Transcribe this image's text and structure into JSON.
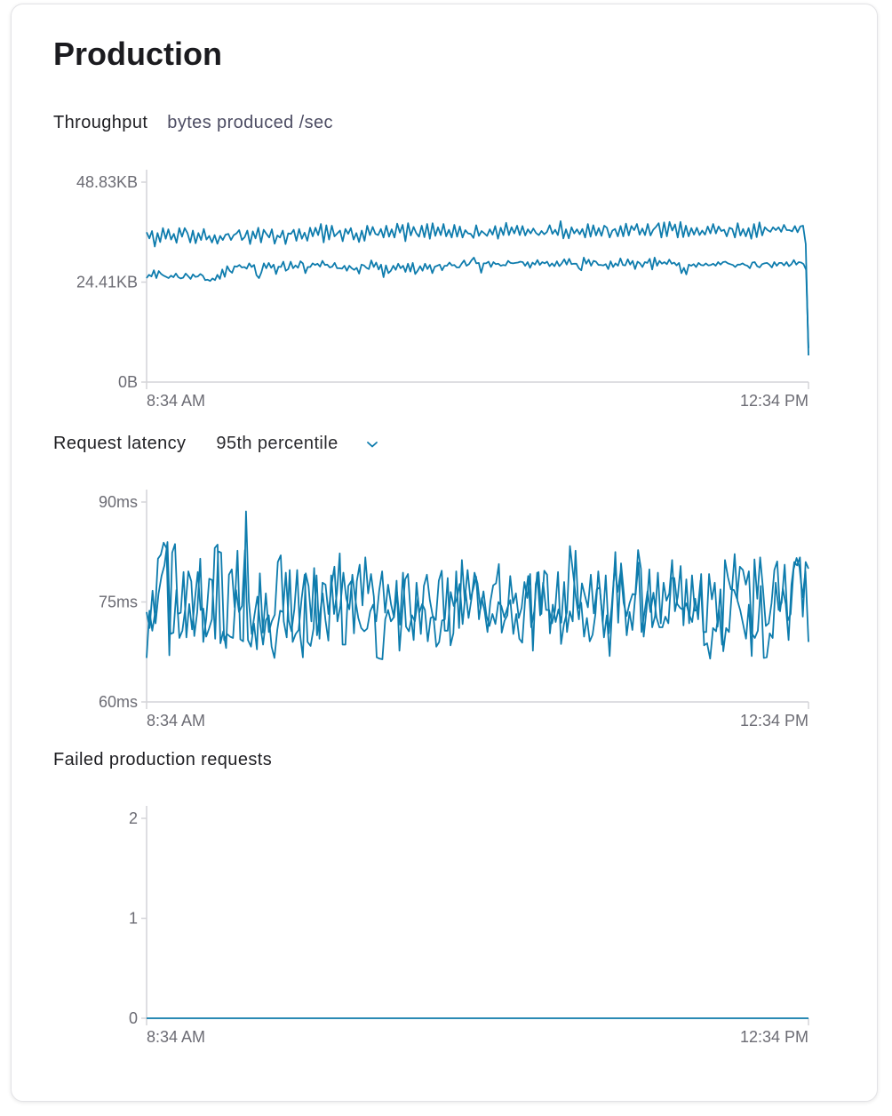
{
  "page": {
    "title": "Production"
  },
  "throughput": {
    "label": "Throughput",
    "unit": "bytes produced /sec"
  },
  "latency": {
    "label": "Request latency",
    "percentile": "95th percentile",
    "percentile_icon": "chevron-down-icon"
  },
  "failed": {
    "label": "Failed production requests"
  },
  "colors": {
    "series": "#0e7cad",
    "axis": "#d4d4d8",
    "tick_text": "#6c6c74"
  },
  "chart_data": [
    {
      "type": "line",
      "name": "throughput",
      "y_ticks": [
        "0B",
        "24.41KB",
        "48.83KB"
      ],
      "x_labels": [
        "8:34 AM",
        "12:34 PM"
      ],
      "ylim": [
        0,
        48.83
      ],
      "unit": "KB",
      "series": [
        {
          "values": [
            36.6,
            35.1,
            36.9,
            33.1,
            36.4,
            34.2,
            37.6,
            35.0,
            37.3,
            34.8,
            36.2,
            34.0,
            37.6,
            35.5,
            37.6,
            36.4,
            34.1,
            37.0,
            33.9,
            36.4,
            34.7,
            37.4,
            34.8,
            35.7,
            34.1,
            35.9,
            33.8,
            35.7,
            34.7,
            36.0,
            36.2,
            34.7,
            35.9,
            36.3,
            37.1,
            34.7,
            35.4,
            37.0,
            33.7,
            36.8,
            35.1,
            37.7,
            34.1,
            37.2,
            36.2,
            35.3,
            37.3,
            33.8,
            35.8,
            35.3,
            37.0,
            33.7,
            36.3,
            36.2,
            37.2,
            34.5,
            37.4,
            35.0,
            36.5,
            34.5,
            37.7,
            35.6,
            37.7,
            35.9,
            38.6,
            34.1,
            38.3,
            34.8,
            38.2,
            35.6,
            36.3,
            37.0,
            34.4,
            37.4,
            36.2,
            37.6,
            34.8,
            36.4,
            34.2,
            37.0,
            34.5,
            38.2,
            35.9,
            37.9,
            36.2,
            35.9,
            37.4,
            35.3,
            38.2,
            35.5,
            37.3,
            35.3,
            38.7,
            36.5,
            38.4,
            34.4,
            38.8,
            35.8,
            37.9,
            36.4,
            35.5,
            38.2,
            35.4,
            38.6,
            35.0,
            38.8,
            35.7,
            37.8,
            35.9,
            38.6,
            35.6,
            37.2,
            35.3,
            38.4,
            35.5,
            38.0,
            35.3,
            37.1,
            36.3,
            36.2,
            35.2,
            38.3,
            35.7,
            36.9,
            36.3,
            35.7,
            37.3,
            36.0,
            38.1,
            35.0,
            37.7,
            35.9,
            38.9,
            35.9,
            37.8,
            36.3,
            38.2,
            35.9,
            38.1,
            35.8,
            37.3,
            36.3,
            37.5,
            36.4,
            35.9,
            36.9,
            36.1,
            36.7,
            38.3,
            36.2,
            37.2,
            35.9,
            39.3,
            35.1,
            37.3,
            35.1,
            37.8,
            36.3,
            37.3,
            36.1,
            37.4,
            35.3,
            38.6,
            35.5,
            38.3,
            35.8,
            37.6,
            35.7,
            38.2,
            37.7,
            35.3,
            37.0,
            37.4,
            35.6,
            38.1,
            35.6,
            38.7,
            35.8,
            38.1,
            37.1,
            38.6,
            36.0,
            37.5,
            35.9,
            38.6,
            35.8,
            37.2,
            37.9,
            38.8,
            35.3,
            39.0,
            35.6,
            39.1,
            37.0,
            38.5,
            35.3,
            39.1,
            35.4,
            38.2,
            35.6,
            37.6,
            36.0,
            37.7,
            35.9,
            37.0,
            36.0,
            38.0,
            36.3,
            38.6,
            36.3,
            38.0,
            36.9,
            37.2,
            35.6,
            37.7,
            37.4,
            35.3,
            38.8,
            35.8,
            37.4,
            35.6,
            37.6,
            35.0,
            38.6,
            35.4,
            39.0,
            35.8,
            37.8,
            37.1,
            36.7,
            37.8,
            37.1,
            37.8,
            36.7,
            38.4,
            37.1,
            37.1,
            36.8,
            38.1,
            36.6,
            38.0,
            38.2,
            33.7,
            6.5
          ]
        },
        {
          "values": [
            25.4,
            26.2,
            25.8,
            27.3,
            25.4,
            27.1,
            26.4,
            26.0,
            25.7,
            25.4,
            26.0,
            25.6,
            26.5,
            25.6,
            25.3,
            25.5,
            26.5,
            25.9,
            25.2,
            26.3,
            25.7,
            25.8,
            26.4,
            26.0,
            24.9,
            25.0,
            24.7,
            25.3,
            24.9,
            26.2,
            25.2,
            27.5,
            25.7,
            28.3,
            27.2,
            26.7,
            28.3,
            28.2,
            28.6,
            28.0,
            28.1,
            27.7,
            29.0,
            28.1,
            28.6,
            26.1,
            25.4,
            26.8,
            29.0,
            27.8,
            29.1,
            27.9,
            28.7,
            26.4,
            28.2,
            28.1,
            29.4,
            27.2,
            27.6,
            29.4,
            27.8,
            28.5,
            27.9,
            29.5,
            29.0,
            26.6,
            28.1,
            28.1,
            29.0,
            28.6,
            28.9,
            28.2,
            29.6,
            28.6,
            28.7,
            28.0,
            28.2,
            29.1,
            27.8,
            27.8,
            27.7,
            28.4,
            27.2,
            28.4,
            27.8,
            27.4,
            27.9,
            26.5,
            28.7,
            28.5,
            27.9,
            27.6,
            29.7,
            28.1,
            29.2,
            27.5,
            28.7,
            25.6,
            28.5,
            26.6,
            27.2,
            28.4,
            27.4,
            28.9,
            27.8,
            28.4,
            26.9,
            28.9,
            27.0,
            29.1,
            26.4,
            27.2,
            28.3,
            27.2,
            28.9,
            27.6,
            28.6,
            26.6,
            28.2,
            28.4,
            28.7,
            27.3,
            28.4,
            28.4,
            29.2,
            28.5,
            28.6,
            28.0,
            28.0,
            28.9,
            29.7,
            28.4,
            28.8,
            29.7,
            30.4,
            29.0,
            29.1,
            26.7,
            29.0,
            29.0,
            29.4,
            28.1,
            29.3,
            28.8,
            28.9,
            28.4,
            28.6,
            28.5,
            29.6,
            29.1,
            29.0,
            29.1,
            29.2,
            29.4,
            29.3,
            28.4,
            29.3,
            27.9,
            29.2,
            28.7,
            29.8,
            28.6,
            29.3,
            29.0,
            29.4,
            28.3,
            29.0,
            28.3,
            29.5,
            28.3,
            29.0,
            30.0,
            28.7,
            30.1,
            28.8,
            28.9,
            28.9,
            27.8,
            27.3,
            30.4,
            28.9,
            29.9,
            28.4,
            29.6,
            29.4,
            28.6,
            28.6,
            28.5,
            28.8,
            27.6,
            29.5,
            28.1,
            29.0,
            28.4,
            30.2,
            28.6,
            28.5,
            30.0,
            28.7,
            29.6,
            27.6,
            29.4,
            29.0,
            28.1,
            29.3,
            29.1,
            30.1,
            27.5,
            30.4,
            28.4,
            29.6,
            28.9,
            29.3,
            28.8,
            29.9,
            28.9,
            29.2,
            28.5,
            29.1,
            26.6,
            27.9,
            26.3,
            28.7,
            28.4,
            28.8,
            28.1,
            29.1,
            28.6,
            28.5,
            29.0,
            28.5,
            28.6,
            28.9,
            28.4,
            29.3,
            28.7,
            29.3,
            29.4,
            29.0,
            28.8,
            28.6,
            28.1,
            28.7,
            28.7,
            29.0,
            28.6,
            28.4,
            27.8,
            29.2,
            29.3,
            28.3,
            28.0,
            28.8,
            29.0,
            29.1,
            28.7,
            28.0,
            29.3,
            28.4,
            29.1,
            29.1,
            28.5,
            29.3,
            28.3,
            28.8,
            29.8,
            28.7,
            29.3,
            29.2,
            28.8,
            27.4,
            8.3
          ]
        }
      ]
    },
    {
      "type": "line",
      "name": "latency",
      "y_ticks": [
        "60ms",
        "75ms",
        "90ms"
      ],
      "x_labels": [
        "8:34 AM",
        "12:34 PM"
      ],
      "ylim": [
        60,
        90
      ],
      "series": [
        {
          "values": [
            73.5,
            71.1,
            76.7,
            71.8,
            76.2,
            78.9,
            80.5,
            84.0,
            70.2,
            70.4,
            76.8,
            69.6,
            70.7,
            74.1,
            79.6,
            78.1,
            69.9,
            73.5,
            81.5,
            69.0,
            72.5,
            78.5,
            78.3,
            69.5,
            82.6,
            82.4,
            69.3,
            70.2,
            69.8,
            69.6,
            76.8,
            73.5,
            74.4,
            82.8,
            69.3,
            68.3,
            71.8,
            67.9,
            79.3,
            70.4,
            76.3,
            70.5,
            72.1,
            73.1,
            81.0,
            82.0,
            72.1,
            69.7,
            79.8,
            69.0,
            70.2,
            70.8,
            75.5,
            79.1,
            69.0,
            68.4,
            71.0,
            79.0,
            69.5,
            77.9,
            77.6,
            73.2,
            77.5,
            80.3,
            72.1,
            74.4,
            79.4,
            75.5,
            73.9,
            79.1,
            75.4,
            72.6,
            71.1,
            70.6,
            71.0,
            73.6,
            74.6,
            72.1,
            76.7,
            79.6,
            73.4,
            77.6,
            74.6,
            72.7,
            76.5,
            71.6,
            79.4,
            71.3,
            70.6,
            73.0,
            72.1,
            75.6,
            70.2,
            77.4,
            79.1,
            75.3,
            72.8,
            72.3,
            78.2,
            79.7,
            70.7,
            70.7,
            76.5,
            74.4,
            75.4,
            77.7,
            71.7,
            76.5,
            72.6,
            75.6,
            79.4,
            77.8,
            74.0,
            76.6,
            72.9,
            71.4,
            73.2,
            71.7,
            75.0,
            74.4,
            72.7,
            74.1,
            75.3,
            70.2,
            73.2,
            69.5,
            68.9,
            75.6,
            78.9,
            71.2,
            73.6,
            79.4,
            73.0,
            77.9,
            73.8,
            73.8,
            71.8,
            73.8,
            79.5,
            68.7,
            71.7,
            73.5,
            83.4,
            79.5,
            75.7,
            72.4,
            77.8,
            76.0,
            74.2,
            79.1,
            73.3,
            76.9,
            77.2,
            71.9,
            79.0,
            70.3,
            74.3,
            80.3,
            76.5,
            79.6,
            74.9,
            72.9,
            74.8,
            76.2,
            76.1,
            80.9,
            70.5,
            73.4,
            76.6,
            73.5,
            76.4,
            72.7,
            71.2,
            71.2,
            72.8,
            71.8,
            78.6,
            78.6,
            74.7,
            74.1,
            73.8,
            74.8,
            73.1,
            72.0,
            75.5,
            72.4,
            79.2,
            68.5,
            68.8,
            66.5,
            71.1,
            70.6,
            73.9,
            68.6,
            81.3,
            78.7,
            76.9,
            76.8,
            75.5,
            80.3,
            79.8,
            77.6,
            79.6,
            70.3,
            69.6,
            70.7,
            77.4,
            66.6,
            66.7,
            70.3,
            69.6,
            77.9,
            73.8,
            74.9,
            80.6,
            72.2,
            73.2,
            79.9,
            81.6,
            80.2,
            75.7,
            79.6,
            69.0
          ]
        },
        {
          "values": [
            66.6,
            73.7,
            70.7,
            73.4,
            81.5,
            82.1,
            83.9,
            83.1,
            67.0,
            82.4,
            83.7,
            73.2,
            73.4,
            79.5,
            69.7,
            74.7,
            70.9,
            75.4,
            79.5,
            73.8,
            74.0,
            69.8,
            71.0,
            72.4,
            83.1,
            83.6,
            68.8,
            70.6,
            68.1,
            79.1,
            79.9,
            74.2,
            82.7,
            69.4,
            69.1,
            88.6,
            75.1,
            70.2,
            73.1,
            75.8,
            71.6,
            68.6,
            72.3,
            73.0,
            68.3,
            66.6,
            70.8,
            73.7,
            73.5,
            79.4,
            72.3,
            70.6,
            73.9,
            79.8,
            70.2,
            66.7,
            79.3,
            77.4,
            72.1,
            80.1,
            70.0,
            73.1,
            76.3,
            72.2,
            69.2,
            79.0,
            73.2,
            76.3,
            82.3,
            68.6,
            68.6,
            77.4,
            78.1,
            70.3,
            78.1,
            80.6,
            74.5,
            81.7,
            76.3,
            79.2,
            75.8,
            66.7,
            66.5,
            66.4,
            72.4,
            73.8,
            72.1,
            72.7,
            78.2,
            67.7,
            73.4,
            78.4,
            79.2,
            73.0,
            69.3,
            77.9,
            73.4,
            74.7,
            73.8,
            69.1,
            72.6,
            72.8,
            68.3,
            69.0,
            72.2,
            72.4,
            78.6,
            68.5,
            70.3,
            79.6,
            71.1,
            81.3,
            75.2,
            79.8,
            75.4,
            77.0,
            78.8,
            72.4,
            75.6,
            73.6,
            70.5,
            75.0,
            77.5,
            77.8,
            80.7,
            70.4,
            72.2,
            73.0,
            78.9,
            74.8,
            76.3,
            72.6,
            74.1,
            78.0,
            75.6,
            79.2,
            67.7,
            77.7,
            79.5,
            73.2,
            79.7,
            79.1,
            70.3,
            74.6,
            72.0,
            73.9,
            71.9,
            78.0,
            70.5,
            73.6,
            72.1,
            82.7,
            74.1,
            74.9,
            69.8,
            72.6,
            69.1,
            70.1,
            73.2,
            79.6,
            74.9,
            69.7,
            73.0,
            66.9,
            74.9,
            82.5,
            71.9,
            80.8,
            76.3,
            70.0,
            73.5,
            70.8,
            75.9,
            82.8,
            80.0,
            69.8,
            73.9,
            79.9,
            71.2,
            72.9,
            79.4,
            71.8,
            77.9,
            75.2,
            76.3,
            81.3,
            73.6,
            75.8,
            80.4,
            71.5,
            78.4,
            71.8,
            79.0,
            73.7,
            73.8,
            78.2,
            70.5,
            70.5,
            79.2,
            75.4,
            77.9,
            71.3,
            76.9,
            67.6,
            71.1,
            70.5,
            76.5,
            82.2,
            75.2,
            73.7,
            71.6,
            69.5,
            74.6,
            66.9,
            81.4,
            75.5,
            81.7,
            77.0,
            71.4,
            71.8,
            74.8,
            79.8,
            81.1,
            73.6,
            77.0,
            74.7,
            69.3,
            77.6,
            81.0,
            80.5,
            81.7,
            72.8,
            81.0,
            80.0
          ]
        }
      ]
    },
    {
      "type": "line",
      "name": "failed",
      "y_ticks": [
        "0",
        "1",
        "2"
      ],
      "x_labels": [
        "8:34 AM",
        "12:34 PM"
      ],
      "ylim": [
        0,
        2
      ],
      "series": [
        {
          "values": [
            0,
            0
          ]
        }
      ]
    }
  ]
}
